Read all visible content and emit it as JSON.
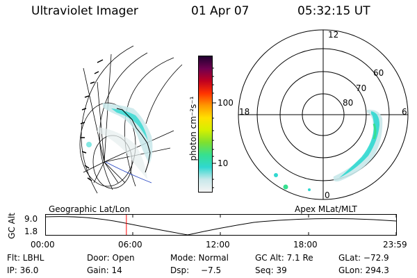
{
  "header": {
    "instrument": "Ultraviolet Imager",
    "date": "01 Apr 07",
    "time": "05:32:15 UT"
  },
  "colorbar": {
    "unit_label": "photon cm⁻²s⁻¹",
    "ticks": [
      "100",
      "10"
    ],
    "gradient": [
      "#f4f4f4",
      "#c8e8ea",
      "#30d8d0",
      "#36e090",
      "#7ee030",
      "#d4f000",
      "#ffe000",
      "#ff9900",
      "#ff3300",
      "#c00020",
      "#700050",
      "#200030"
    ]
  },
  "polar_plot": {
    "mlt_labels": [
      "12",
      "18",
      "6",
      "0"
    ],
    "lat_labels": [
      "60",
      "70",
      "80"
    ]
  },
  "altitude_plot": {
    "left_label": "Geographic Lat/Lon",
    "right_label": "Apex MLat/MLT",
    "axis_label": "GC Alt",
    "y_ticks": [
      "9.0",
      "1.8"
    ],
    "x_ticks": [
      "00:00",
      "06:00",
      "12:00",
      "18:00",
      "23:59"
    ],
    "current_time_marker_hours": 5.53,
    "marker_color": "#ff0000"
  },
  "status": {
    "row1": {
      "filter": "Flt: LBHL",
      "door": "Door: Open",
      "mode": "Mode: Normal",
      "gc_alt": "GC Alt: 7.1 Re",
      "glat": "GLat: −72.9"
    },
    "row2": {
      "ip": "IP: 36.0",
      "gain": "Gain: 14",
      "dsp_label": "Dsp:",
      "dsp_value": "−7.5",
      "seq": "Seq: 39",
      "glon": "GLon: 294.3"
    }
  }
}
